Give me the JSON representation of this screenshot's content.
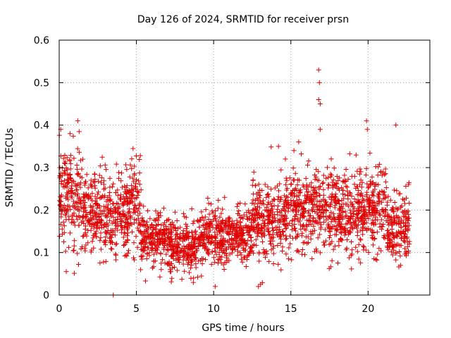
{
  "chart_data": {
    "type": "scatter",
    "title": "Day 126 of 2024, SRMTID for receiver prsn",
    "xlabel": "GPS time / hours",
    "ylabel": "SRMTID / TECUs",
    "xlim": [
      0,
      24
    ],
    "ylim": [
      0,
      0.6
    ],
    "xticks": [
      0,
      5,
      10,
      15,
      20
    ],
    "yticks": [
      0,
      0.1,
      0.2,
      0.3,
      0.4,
      0.5,
      0.6
    ],
    "ytick_labels": [
      "0",
      "0.1",
      "0.2",
      "0.3",
      "0.4",
      "0.5",
      "0.6"
    ],
    "grid": true,
    "marker": "plus",
    "color": "#e00000",
    "series_summary": [
      {
        "x_range": [
          0.0,
          1.5
        ],
        "y_center": 0.22,
        "y_spread": 0.07
      },
      {
        "x_range": [
          1.5,
          3.0
        ],
        "y_center": 0.2,
        "y_spread": 0.06
      },
      {
        "x_range": [
          3.0,
          4.5
        ],
        "y_center": 0.19,
        "y_spread": 0.06
      },
      {
        "x_range": [
          4.5,
          5.3
        ],
        "y_center": 0.21,
        "y_spread": 0.06
      },
      {
        "x_range": [
          5.3,
          7.0
        ],
        "y_center": 0.13,
        "y_spread": 0.04
      },
      {
        "x_range": [
          7.0,
          9.0
        ],
        "y_center": 0.12,
        "y_spread": 0.04
      },
      {
        "x_range": [
          9.0,
          11.0
        ],
        "y_center": 0.14,
        "y_spread": 0.04
      },
      {
        "x_range": [
          11.0,
          12.5
        ],
        "y_center": 0.14,
        "y_spread": 0.04
      },
      {
        "x_range": [
          12.5,
          14.5
        ],
        "y_center": 0.18,
        "y_spread": 0.06
      },
      {
        "x_range": [
          14.5,
          17.0
        ],
        "y_center": 0.2,
        "y_spread": 0.06
      },
      {
        "x_range": [
          17.0,
          19.5
        ],
        "y_center": 0.19,
        "y_spread": 0.06
      },
      {
        "x_range": [
          19.5,
          21.2
        ],
        "y_center": 0.2,
        "y_spread": 0.06
      },
      {
        "x_range": [
          21.2,
          22.7
        ],
        "y_center": 0.16,
        "y_spread": 0.05
      }
    ],
    "highlights": [
      {
        "x": 0.1,
        "y": 0.39
      },
      {
        "x": 0.7,
        "y": 0.38
      },
      {
        "x": 1.2,
        "y": 0.41
      },
      {
        "x": 3.5,
        "y": 0.0
      },
      {
        "x": 8.7,
        "y": 0.04
      },
      {
        "x": 10.1,
        "y": 0.02
      },
      {
        "x": 12.9,
        "y": 0.02
      },
      {
        "x": 14.2,
        "y": 0.35
      },
      {
        "x": 15.2,
        "y": 0.34
      },
      {
        "x": 16.8,
        "y": 0.53
      },
      {
        "x": 16.85,
        "y": 0.5
      },
      {
        "x": 16.8,
        "y": 0.46
      },
      {
        "x": 16.9,
        "y": 0.45
      },
      {
        "x": 16.9,
        "y": 0.39
      },
      {
        "x": 19.9,
        "y": 0.41
      },
      {
        "x": 19.95,
        "y": 0.39
      },
      {
        "x": 21.8,
        "y": 0.4
      },
      {
        "x": 22.1,
        "y": 0.07
      }
    ]
  }
}
